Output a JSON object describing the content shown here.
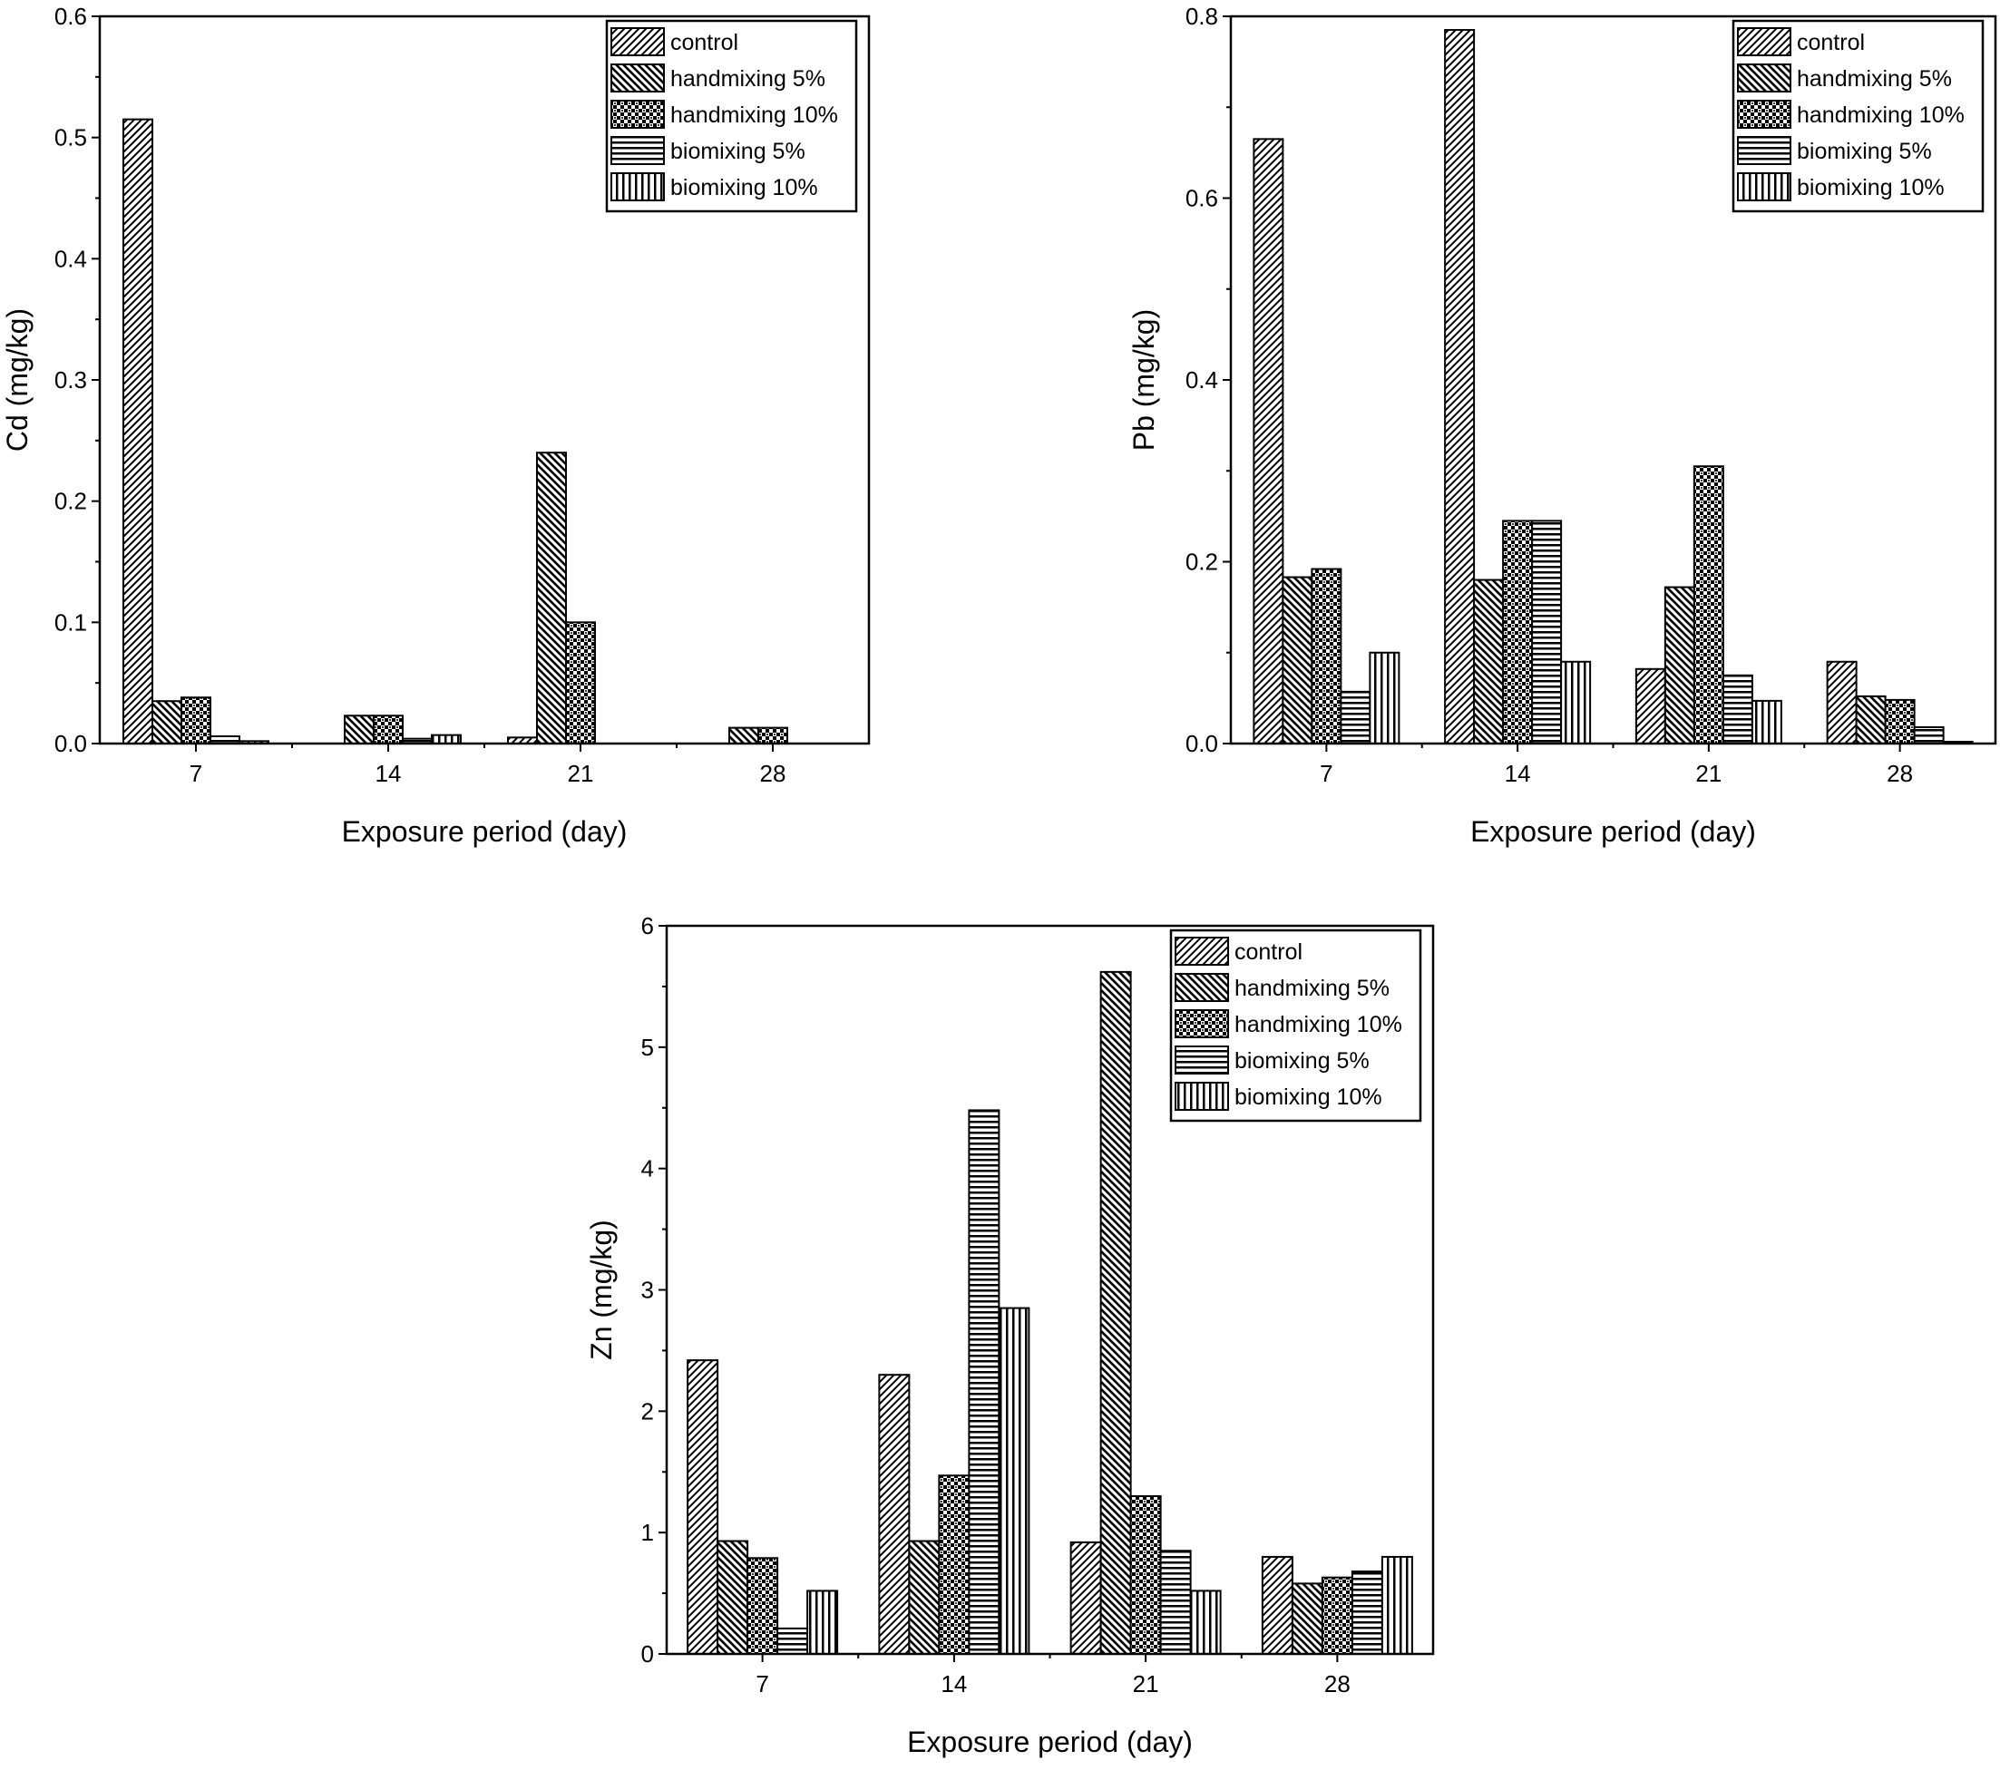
{
  "chart_data": [
    {
      "type": "bar",
      "title": "",
      "xlabel": "Exposure period (day)",
      "ylabel": "Cd (mg/kg)",
      "categories": [
        "7",
        "14",
        "21",
        "28"
      ],
      "ylim": [
        0,
        0.6
      ],
      "yticks": [
        "0.0",
        "0.1",
        "0.2",
        "0.3",
        "0.4",
        "0.5",
        "0.6"
      ],
      "legend_position": "top-right",
      "series": [
        {
          "name": "control",
          "pattern": "diag-right",
          "values": [
            0.515,
            0.0,
            0.005,
            0.0
          ]
        },
        {
          "name": "handmixing 5%",
          "pattern": "diag-left",
          "values": [
            0.035,
            0.023,
            0.24,
            0.013
          ]
        },
        {
          "name": "handmixing 10%",
          "pattern": "checker",
          "values": [
            0.038,
            0.023,
            0.1,
            0.013
          ]
        },
        {
          "name": "biomixing 5%",
          "pattern": "horizontal",
          "values": [
            0.006,
            0.004,
            0.0,
            0.0
          ]
        },
        {
          "name": "biomixing 10%",
          "pattern": "vertical",
          "values": [
            0.002,
            0.007,
            0.0,
            0.0
          ]
        }
      ]
    },
    {
      "type": "bar",
      "title": "",
      "xlabel": "Exposure period (day)",
      "ylabel": "Pb (mg/kg)",
      "categories": [
        "7",
        "14",
        "21",
        "28"
      ],
      "ylim": [
        0,
        0.8
      ],
      "yticks": [
        "0.0",
        "0.2",
        "0.4",
        "0.6",
        "0.8"
      ],
      "legend_position": "top-right",
      "series": [
        {
          "name": "control",
          "pattern": "diag-right",
          "values": [
            0.665,
            0.785,
            0.082,
            0.09
          ]
        },
        {
          "name": "handmixing 5%",
          "pattern": "diag-left",
          "values": [
            0.183,
            0.18,
            0.172,
            0.052
          ]
        },
        {
          "name": "handmixing 10%",
          "pattern": "checker",
          "values": [
            0.192,
            0.245,
            0.305,
            0.048
          ]
        },
        {
          "name": "biomixing 5%",
          "pattern": "horizontal",
          "values": [
            0.057,
            0.245,
            0.075,
            0.018
          ]
        },
        {
          "name": "biomixing 10%",
          "pattern": "vertical",
          "values": [
            0.1,
            0.09,
            0.047,
            0.002
          ]
        }
      ]
    },
    {
      "type": "bar",
      "title": "",
      "xlabel": "Exposure period (day)",
      "ylabel": "Zn (mg/kg)",
      "categories": [
        "7",
        "14",
        "21",
        "28"
      ],
      "ylim": [
        0,
        6
      ],
      "yticks": [
        "0",
        "1",
        "2",
        "3",
        "4",
        "5",
        "6"
      ],
      "legend_position": "top-right",
      "series": [
        {
          "name": "control",
          "pattern": "diag-right",
          "values": [
            2.42,
            2.3,
            0.92,
            0.8
          ]
        },
        {
          "name": "handmixing 5%",
          "pattern": "diag-left",
          "values": [
            0.93,
            0.93,
            5.62,
            0.58
          ]
        },
        {
          "name": "handmixing 10%",
          "pattern": "checker",
          "values": [
            0.79,
            1.47,
            1.3,
            0.63
          ]
        },
        {
          "name": "biomixing 5%",
          "pattern": "horizontal",
          "values": [
            0.21,
            4.48,
            0.85,
            0.68
          ]
        },
        {
          "name": "biomixing 10%",
          "pattern": "vertical",
          "values": [
            0.52,
            2.85,
            0.52,
            0.8
          ]
        }
      ]
    }
  ]
}
